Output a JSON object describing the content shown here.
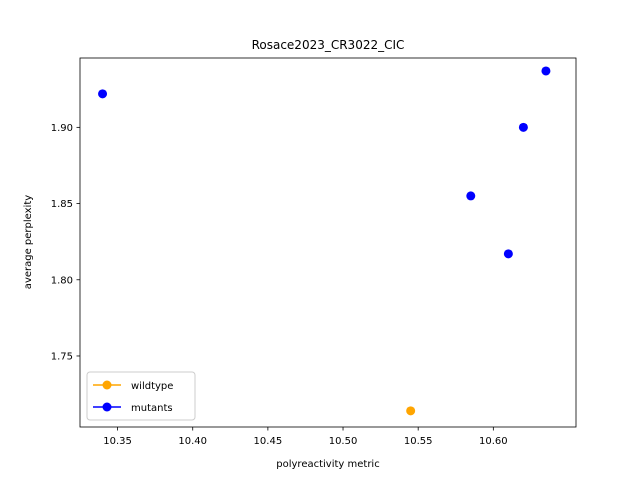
{
  "chart_data": {
    "type": "scatter",
    "title": "Rosace2023_CR3022_CIC",
    "xlabel": "polyreactivity metric",
    "ylabel": "average perplexity",
    "xlim": [
      10.325,
      10.655
    ],
    "ylim": [
      1.7034,
      1.9455
    ],
    "xticks": [
      10.35,
      10.4,
      10.45,
      10.5,
      10.55,
      10.6
    ],
    "xtick_labels": [
      "10.35",
      "10.40",
      "10.45",
      "10.50",
      "10.55",
      "10.60"
    ],
    "yticks": [
      1.75,
      1.8,
      1.85,
      1.9
    ],
    "ytick_labels": [
      "1.75",
      "1.80",
      "1.85",
      "1.90"
    ],
    "grid": false,
    "legend_position": "lower-left",
    "series": [
      {
        "name": "wildtype",
        "color": "#ffa500",
        "points": [
          {
            "x": 10.545,
            "y": 1.714
          }
        ]
      },
      {
        "name": "mutants",
        "color": "#0000ff",
        "points": [
          {
            "x": 10.34,
            "y": 1.922
          },
          {
            "x": 10.585,
            "y": 1.855
          },
          {
            "x": 10.61,
            "y": 1.817
          },
          {
            "x": 10.62,
            "y": 1.9
          },
          {
            "x": 10.635,
            "y": 1.937
          }
        ]
      }
    ]
  }
}
